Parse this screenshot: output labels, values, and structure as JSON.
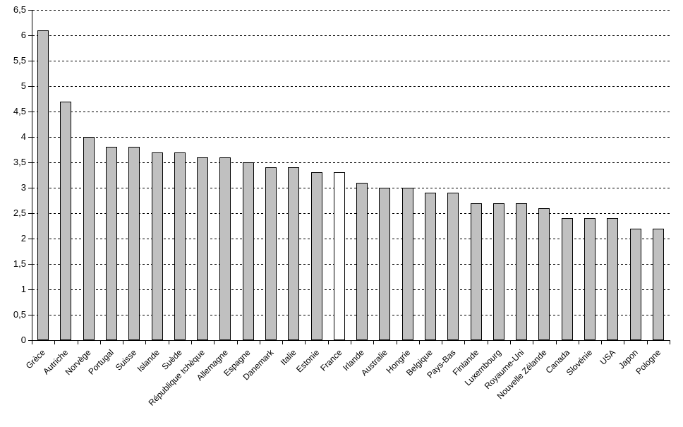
{
  "chart_data": {
    "type": "bar",
    "title": "",
    "xlabel": "",
    "ylabel": "",
    "categories": [
      "Grèce",
      "Autriche",
      "Norvège",
      "Portugal",
      "Suisse",
      "Islande",
      "Suède",
      "République tchèque",
      "Allemagne",
      "Espagne",
      "Danemark",
      "Italie",
      "Estonie",
      "France",
      "Irlande",
      "Australie",
      "Hongrie",
      "Belgique",
      "Pays-Bas",
      "Finlande",
      "Luxembourg",
      "Royaume-Uni",
      "Nouvelle Zélande",
      "Canada",
      "Slovénie",
      "USA",
      "Japon",
      "Pologne"
    ],
    "values": [
      6.1,
      4.7,
      4.0,
      3.8,
      3.8,
      3.7,
      3.7,
      3.6,
      3.6,
      3.5,
      3.4,
      3.4,
      3.3,
      3.3,
      3.1,
      3.0,
      3.0,
      2.9,
      2.9,
      2.7,
      2.7,
      2.7,
      2.6,
      2.4,
      2.4,
      2.4,
      2.2,
      2.2
    ],
    "highlight_category": "France",
    "highlight_index": 13,
    "bar_fill": "#C0C0C0",
    "highlight_fill": "#FFFFFF",
    "bar_border": "#000000",
    "background": "#FFFFFF",
    "ylim": [
      0,
      6.5
    ],
    "ytick_step": 0.5,
    "y_tick_labels": [
      "0",
      "0,5",
      "1",
      "1,5",
      "2",
      "2,5",
      "3",
      "3,5",
      "4",
      "4,5",
      "5",
      "5,5",
      "6",
      "6,5"
    ],
    "decimal_separator": ",",
    "grid": "horizontal-dashed",
    "legend_position": "none",
    "x_label_rotation_deg": 45
  }
}
